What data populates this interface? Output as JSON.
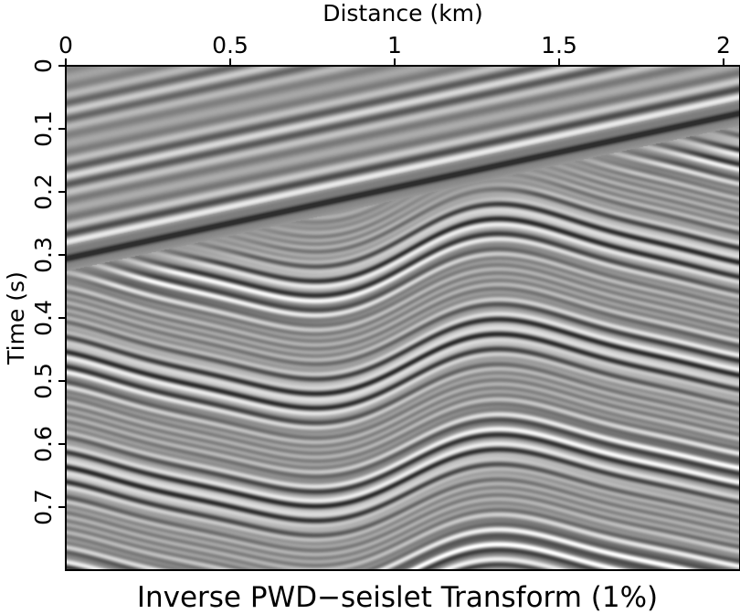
{
  "chart_data": {
    "type": "heatmap",
    "title": "Inverse PWD−seislet Transform (1%)",
    "xlabel": "Distance (km)",
    "ylabel": "Time (s)",
    "xlim": [
      0,
      2.05
    ],
    "ylim": [
      0,
      0.8
    ],
    "y_inverted": true,
    "x_axis_position": "top",
    "colormap": "gray",
    "xticks": [
      0,
      0.5,
      1,
      1.5,
      2
    ],
    "xtick_labels": [
      "0",
      "0.5",
      "1",
      "1.5",
      "2"
    ],
    "yticks": [
      0,
      0.1,
      0.2,
      0.3,
      0.4,
      0.5,
      0.6,
      0.7
    ],
    "ytick_labels": [
      "0",
      "0.1",
      "0.2",
      "0.3",
      "0.4",
      "0.5",
      "0.6",
      "0.7"
    ],
    "dipping_reflector": {
      "t_at_x0": 0.305,
      "t_at_x2": 0.08
    },
    "folded_reflectors": {
      "t_first": 0.44,
      "t_last": 0.78,
      "count": 15
    }
  }
}
